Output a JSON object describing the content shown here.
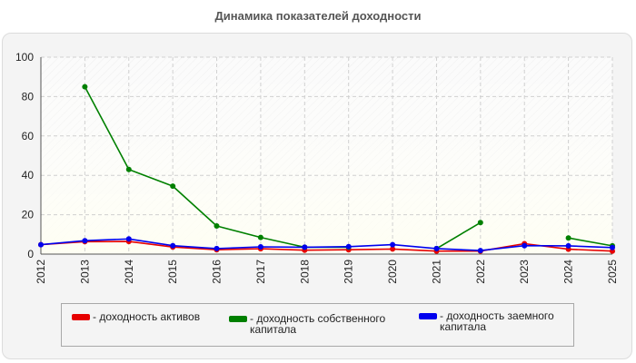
{
  "chart_data": {
    "type": "line",
    "title": "Динамика показателей доходности",
    "xlabel": "",
    "ylabel": "",
    "ylim": [
      0,
      100
    ],
    "yticks": [
      0,
      20,
      40,
      60,
      80,
      100
    ],
    "x": [
      "2012",
      "2013",
      "2014",
      "2015",
      "2016",
      "2017",
      "2018",
      "2019",
      "2020",
      "2021",
      "2022",
      "2023",
      "2024",
      "2025"
    ],
    "grid": true,
    "legend_position": "bottom",
    "series": [
      {
        "name": "- доходность активов",
        "color": "#e60000",
        "values": [
          4.8,
          6.3,
          6.4,
          3.6,
          2.2,
          2.7,
          2.0,
          2.2,
          2.6,
          1.5,
          1.5,
          5.3,
          2.5,
          1.5
        ]
      },
      {
        "name": "- доходность собственного капитала",
        "color": "#008000",
        "values": [
          null,
          85.0,
          43.0,
          34.5,
          14.3,
          8.5,
          3.5,
          3.5,
          null,
          2.8,
          16.0,
          null,
          8.2,
          4.2
        ]
      },
      {
        "name": "- доходность заемного капитала",
        "color": "#0000ee",
        "values": [
          4.8,
          6.8,
          7.7,
          4.3,
          2.8,
          3.7,
          3.5,
          3.8,
          4.8,
          2.8,
          1.8,
          4.3,
          4.2,
          3.3
        ]
      }
    ]
  }
}
